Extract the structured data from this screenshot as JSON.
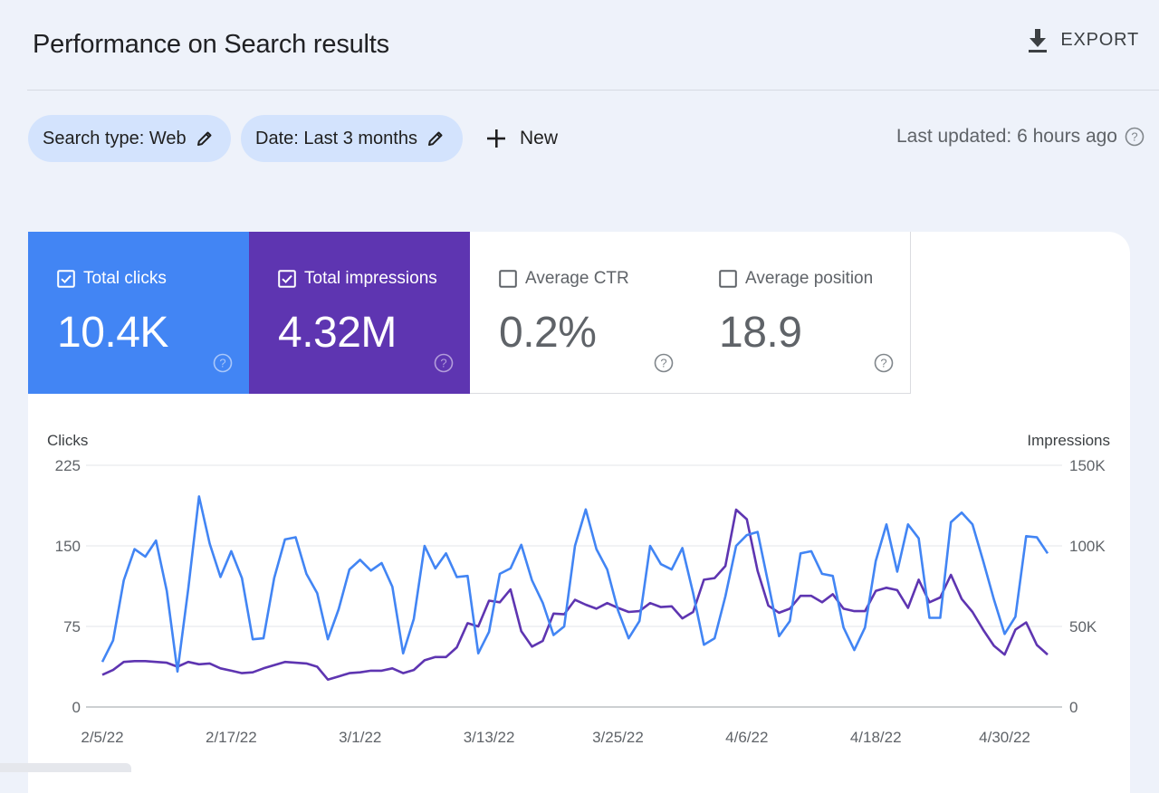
{
  "header": {
    "title": "Performance on Search results",
    "export_label": "EXPORT"
  },
  "filters": {
    "search_type": "Search type: Web",
    "date": "Date: Last 3 months",
    "new_label": "New"
  },
  "last_updated": "Last updated: 6 hours ago",
  "metrics": [
    {
      "label": "Total clicks",
      "value": "10.4K",
      "checked": true,
      "color": "#4285f4"
    },
    {
      "label": "Total impressions",
      "value": "4.32M",
      "checked": true,
      "color": "#5e35b1"
    },
    {
      "label": "Average CTR",
      "value": "0.2%",
      "checked": false
    },
    {
      "label": "Average position",
      "value": "18.9",
      "checked": false
    }
  ],
  "chart_data": {
    "type": "line",
    "y_left_label": "Clicks",
    "y_right_label": "Impressions",
    "y_left_ticks": [
      "225",
      "150",
      "75",
      "0"
    ],
    "y_right_ticks": [
      "150K",
      "100K",
      "50K",
      "0"
    ],
    "y_left_range": [
      0,
      225
    ],
    "y_right_range": [
      0,
      150000
    ],
    "x_tick_labels": [
      "2/5/22",
      "2/17/22",
      "3/1/22",
      "3/13/22",
      "3/25/22",
      "4/6/22",
      "4/18/22",
      "4/30/22"
    ],
    "start_date": "2/5/22",
    "grid": true,
    "series": [
      {
        "name": "Clicks",
        "color": "#4285f4",
        "axis": "left",
        "values": [
          42,
          62,
          118,
          147,
          140,
          155,
          108,
          33,
          110,
          196,
          152,
          121,
          145,
          120,
          63,
          64,
          120,
          156,
          158,
          124,
          106,
          63,
          91,
          128,
          137,
          127,
          134,
          112,
          50,
          82,
          150,
          129,
          143,
          121,
          122,
          50,
          70,
          124,
          129,
          151,
          118,
          97,
          67,
          75,
          150,
          184,
          147,
          128,
          90,
          64,
          80,
          150,
          133,
          128,
          148,
          106,
          58,
          64,
          103,
          150,
          160,
          163,
          115,
          66,
          80,
          143,
          145,
          124,
          122,
          74,
          53,
          74,
          136,
          170,
          126,
          170,
          157,
          83,
          83,
          172,
          181,
          170,
          136,
          100,
          68,
          84,
          159,
          158,
          143
        ]
      },
      {
        "name": "Impressions",
        "color": "#5e35b1",
        "axis": "right",
        "values": [
          20000,
          23000,
          28000,
          28500,
          28500,
          28000,
          27500,
          25000,
          28000,
          26500,
          27000,
          24000,
          22500,
          21000,
          21500,
          24000,
          26000,
          28000,
          27500,
          27000,
          25000,
          17000,
          19000,
          21000,
          21500,
          22500,
          22500,
          24000,
          21000,
          23000,
          29000,
          31000,
          31000,
          37000,
          52000,
          50000,
          66000,
          65000,
          73000,
          47000,
          37500,
          41000,
          58000,
          57500,
          66500,
          63500,
          61000,
          64500,
          61500,
          59000,
          59500,
          64500,
          62000,
          62500,
          55000,
          59000,
          79000,
          80000,
          87500,
          122500,
          116500,
          84500,
          63000,
          58500,
          61000,
          69000,
          69000,
          65000,
          70000,
          61000,
          59500,
          59500,
          72000,
          74000,
          72500,
          61500,
          79000,
          65000,
          68000,
          82000,
          67000,
          59000,
          48000,
          38000,
          32500,
          48000,
          52500,
          38500,
          32500
        ]
      }
    ]
  }
}
